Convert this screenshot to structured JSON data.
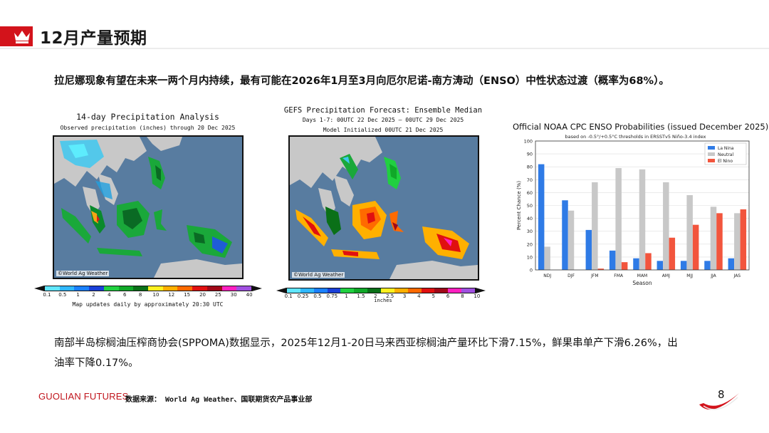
{
  "header": {
    "title": "12月产量预期"
  },
  "paragraph1": {
    "text": "拉尼娜现象有望在未来一两个月内持续，最有可能在2026年1月至3月向厄尔尼诺-南方涛动（ENSO）中性状态过渡（概率为68%）。"
  },
  "map1": {
    "title": "14-day Precipitation Analysis",
    "subtitle": "Observed precipitation (inches) through 20 Dec 2025",
    "watermark": "©World Ag Weather",
    "colorbar_ticks": [
      "0.1",
      "0.5",
      "1",
      "2",
      "4",
      "6",
      "8",
      "10",
      "12",
      "15",
      "20",
      "25",
      "30",
      "40"
    ],
    "caption": "Map updates daily by approximately 20:30 UTC"
  },
  "map2": {
    "title": "GEFS Precipitation Forecast: Ensemble Median",
    "subtitle": "Days 1-7: 00UTC 22 Dec 2025 — 00UTC 29 Dec 2025",
    "init": "Model Initialized 00UTC 21 Dec 2025",
    "watermark": "©World Ag Weather",
    "colorbar_ticks": [
      "0.1",
      "0.25",
      "0.5",
      "0.75",
      "1",
      "1.5",
      "2",
      "2.5",
      "3",
      "4",
      "5",
      "6",
      "8",
      "10"
    ],
    "unit": "inches"
  },
  "colors": {
    "brand_red": "#d3131b",
    "ocean": "#587ca0",
    "land": "#c8c8c8",
    "la_nina": "#2f7be6",
    "neutral": "#c8c8c8",
    "el_nino": "#f2553d"
  },
  "chart_data": {
    "type": "bar",
    "title": "Official NOAA CPC ENSO Probabilities (issued December 2025)",
    "subtitle": "based on -0.5°/+0.5°C thresholds in ERSSTv5 Niño-3.4 index",
    "xlabel": "Season",
    "ylabel": "Percent Chance (%)",
    "ylim": [
      0,
      100
    ],
    "yticks": [
      0,
      10,
      20,
      30,
      40,
      50,
      60,
      70,
      80,
      90,
      100
    ],
    "legend_position": "top-right",
    "categories": [
      "NDJ",
      "DJF",
      "JFM",
      "FMA",
      "MAM",
      "AMJ",
      "MJJ",
      "JJA",
      "JAS"
    ],
    "series": [
      {
        "name": "La Nina",
        "color": "#2f7be6",
        "values": [
          82,
          54,
          31,
          15,
          9,
          7,
          7,
          7,
          9
        ]
      },
      {
        "name": "Neutral",
        "color": "#c8c8c8",
        "values": [
          18,
          46,
          68,
          79,
          78,
          68,
          58,
          49,
          44
        ]
      },
      {
        "name": "El Nino",
        "color": "#f2553d",
        "values": [
          0,
          0,
          1,
          6,
          13,
          25,
          35,
          44,
          47
        ]
      }
    ]
  },
  "paragraph2": {
    "text": "南部半岛棕榈油压榨商协会(SPPOMA)数据显示，2025年12月1-20日马来西亚棕榈油产量环比下滑7.15%，鲜果串单产下滑6.26%，出油率下降0.17%。"
  },
  "footer": {
    "brand": "GUOLIAN FUTURES",
    "source": "数据来源： World Ag Weather、国联期货农产品事业部",
    "page_number": "8"
  }
}
